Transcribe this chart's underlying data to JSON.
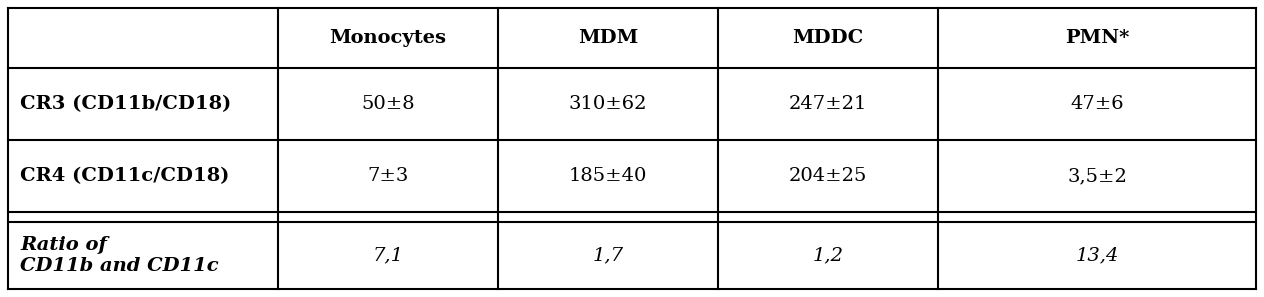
{
  "col_headers": [
    "Monocytes",
    "MDM",
    "MDDC",
    "PMN*"
  ],
  "row_labels_bold": [
    "CR3 (CD11b/CD18)",
    "CR4 (CD11c/CD18)"
  ],
  "row_label_italic_bold": "Ratio of\nCD11b and CD11c",
  "data_rows": [
    [
      "50±8",
      "310±62",
      "247±21",
      "47±6"
    ],
    [
      "7±3",
      "185±40",
      "204±25",
      "3,5±2"
    ],
    [
      "7,1",
      "1,7",
      "1,2",
      "13,4"
    ]
  ],
  "bg_color": "#ffffff",
  "line_color": "#000000",
  "text_color": "#000000",
  "header_fontsize": 14,
  "cell_fontsize": 14,
  "label_fontsize": 14
}
